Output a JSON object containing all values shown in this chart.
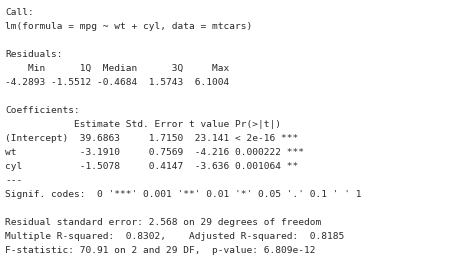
{
  "lines": [
    "Call:",
    "lm(formula = mpg ~ wt + cyl, data = mtcars)",
    "",
    "Residuals:",
    "    Min      1Q  Median      3Q     Max",
    "-4.2893 -1.5512 -0.4684  1.5743  6.1004",
    "",
    "Coefficients:",
    "            Estimate Std. Error t value Pr(>|t|)   ",
    "(Intercept)  39.6863     1.7150  23.141 < 2e-16 ***",
    "wt           -3.1910     0.7569  -4.216 0.000222 ***",
    "cyl          -1.5078     0.4147  -3.636 0.001064 ** ",
    "---",
    "Signif. codes:  0 '***' 0.001 '**' 0.01 '*' 0.05 '.' 0.1 ' ' 1",
    "",
    "Residual standard error: 2.568 on 29 degrees of freedom",
    "Multiple R-squared:  0.8302,    Adjusted R-squared:  0.8185",
    "F-statistic: 70.91 on 2 and 29 DF,  p-value: 6.809e-12"
  ],
  "bg_color": "#ffffff",
  "text_color": "#2a2a2a",
  "font_size": 6.8,
  "font_family": "DejaVu Sans Mono"
}
